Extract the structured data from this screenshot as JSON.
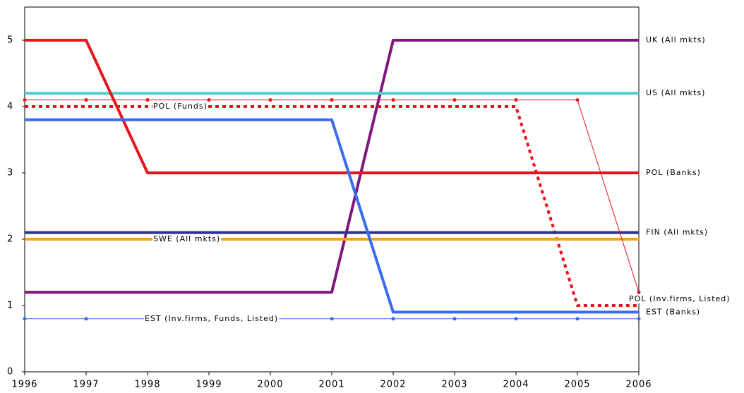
{
  "chart_data": {
    "type": "line",
    "x": [
      1996,
      1997,
      1998,
      1999,
      2000,
      2001,
      2002,
      2003,
      2004,
      2005,
      2006
    ],
    "xlim": [
      1996,
      2006
    ],
    "xticks": [
      1996,
      1997,
      1998,
      1999,
      2000,
      2001,
      2002,
      2003,
      2004,
      2005,
      2006
    ],
    "ylim": [
      0,
      5.5
    ],
    "yticks": [
      0,
      1,
      2,
      3,
      4,
      5
    ],
    "series": [
      {
        "name": "UK (All mkts)",
        "color": "#7f177f",
        "values": [
          1.2,
          1.2,
          1.2,
          1.2,
          1.2,
          1.2,
          5,
          5,
          5,
          5,
          5
        ]
      },
      {
        "name": "US (All mkts)",
        "color": "#4ecdc9",
        "values": [
          4.2,
          4.2,
          4.2,
          4.2,
          4.2,
          4.2,
          4.2,
          4.2,
          4.2,
          4.2,
          4.2
        ]
      },
      {
        "name": "POL (Funds)",
        "color": "#e8141b",
        "dashed": true,
        "values": [
          4,
          4,
          4,
          4,
          4,
          4,
          4,
          4,
          4,
          1,
          1
        ]
      },
      {
        "name": "POL (Banks)",
        "color": "#e8141b",
        "values": [
          5,
          5,
          3,
          3,
          3,
          3,
          3,
          3,
          3,
          3,
          3
        ]
      },
      {
        "name": "FIN (All mkts)",
        "color": "#2e3192",
        "values": [
          2.1,
          2.1,
          2.1,
          2.1,
          2.1,
          2.1,
          2.1,
          2.1,
          2.1,
          2.1,
          2.1
        ]
      },
      {
        "name": "SWE (All mkts)",
        "color": "#f5a31a",
        "values": [
          2,
          2,
          2,
          2,
          2,
          2,
          2,
          2,
          2,
          2,
          2
        ]
      },
      {
        "name": "EST (Banks)",
        "color": "#3a6cf0",
        "values": [
          3.8,
          3.8,
          3.8,
          3.8,
          3.8,
          3.8,
          0.9,
          0.9,
          0.9,
          0.9,
          0.9
        ]
      },
      {
        "name": "EST (Inv.firms, Funds, Listed)",
        "color": "#3a6cf0",
        "thin": true,
        "markers": true,
        "values": [
          0.8,
          0.8,
          0.8,
          0.8,
          0.8,
          0.8,
          0.8,
          0.8,
          0.8,
          0.8,
          0.8
        ]
      },
      {
        "name": "POL (Inv.firms, Listed)",
        "color": "#e8141b",
        "thin": true,
        "markers": true,
        "values": [
          4.1,
          4.1,
          4.1,
          4.1,
          4.1,
          4.1,
          4.1,
          4.1,
          4.1,
          4.1,
          1.2
        ]
      }
    ]
  }
}
